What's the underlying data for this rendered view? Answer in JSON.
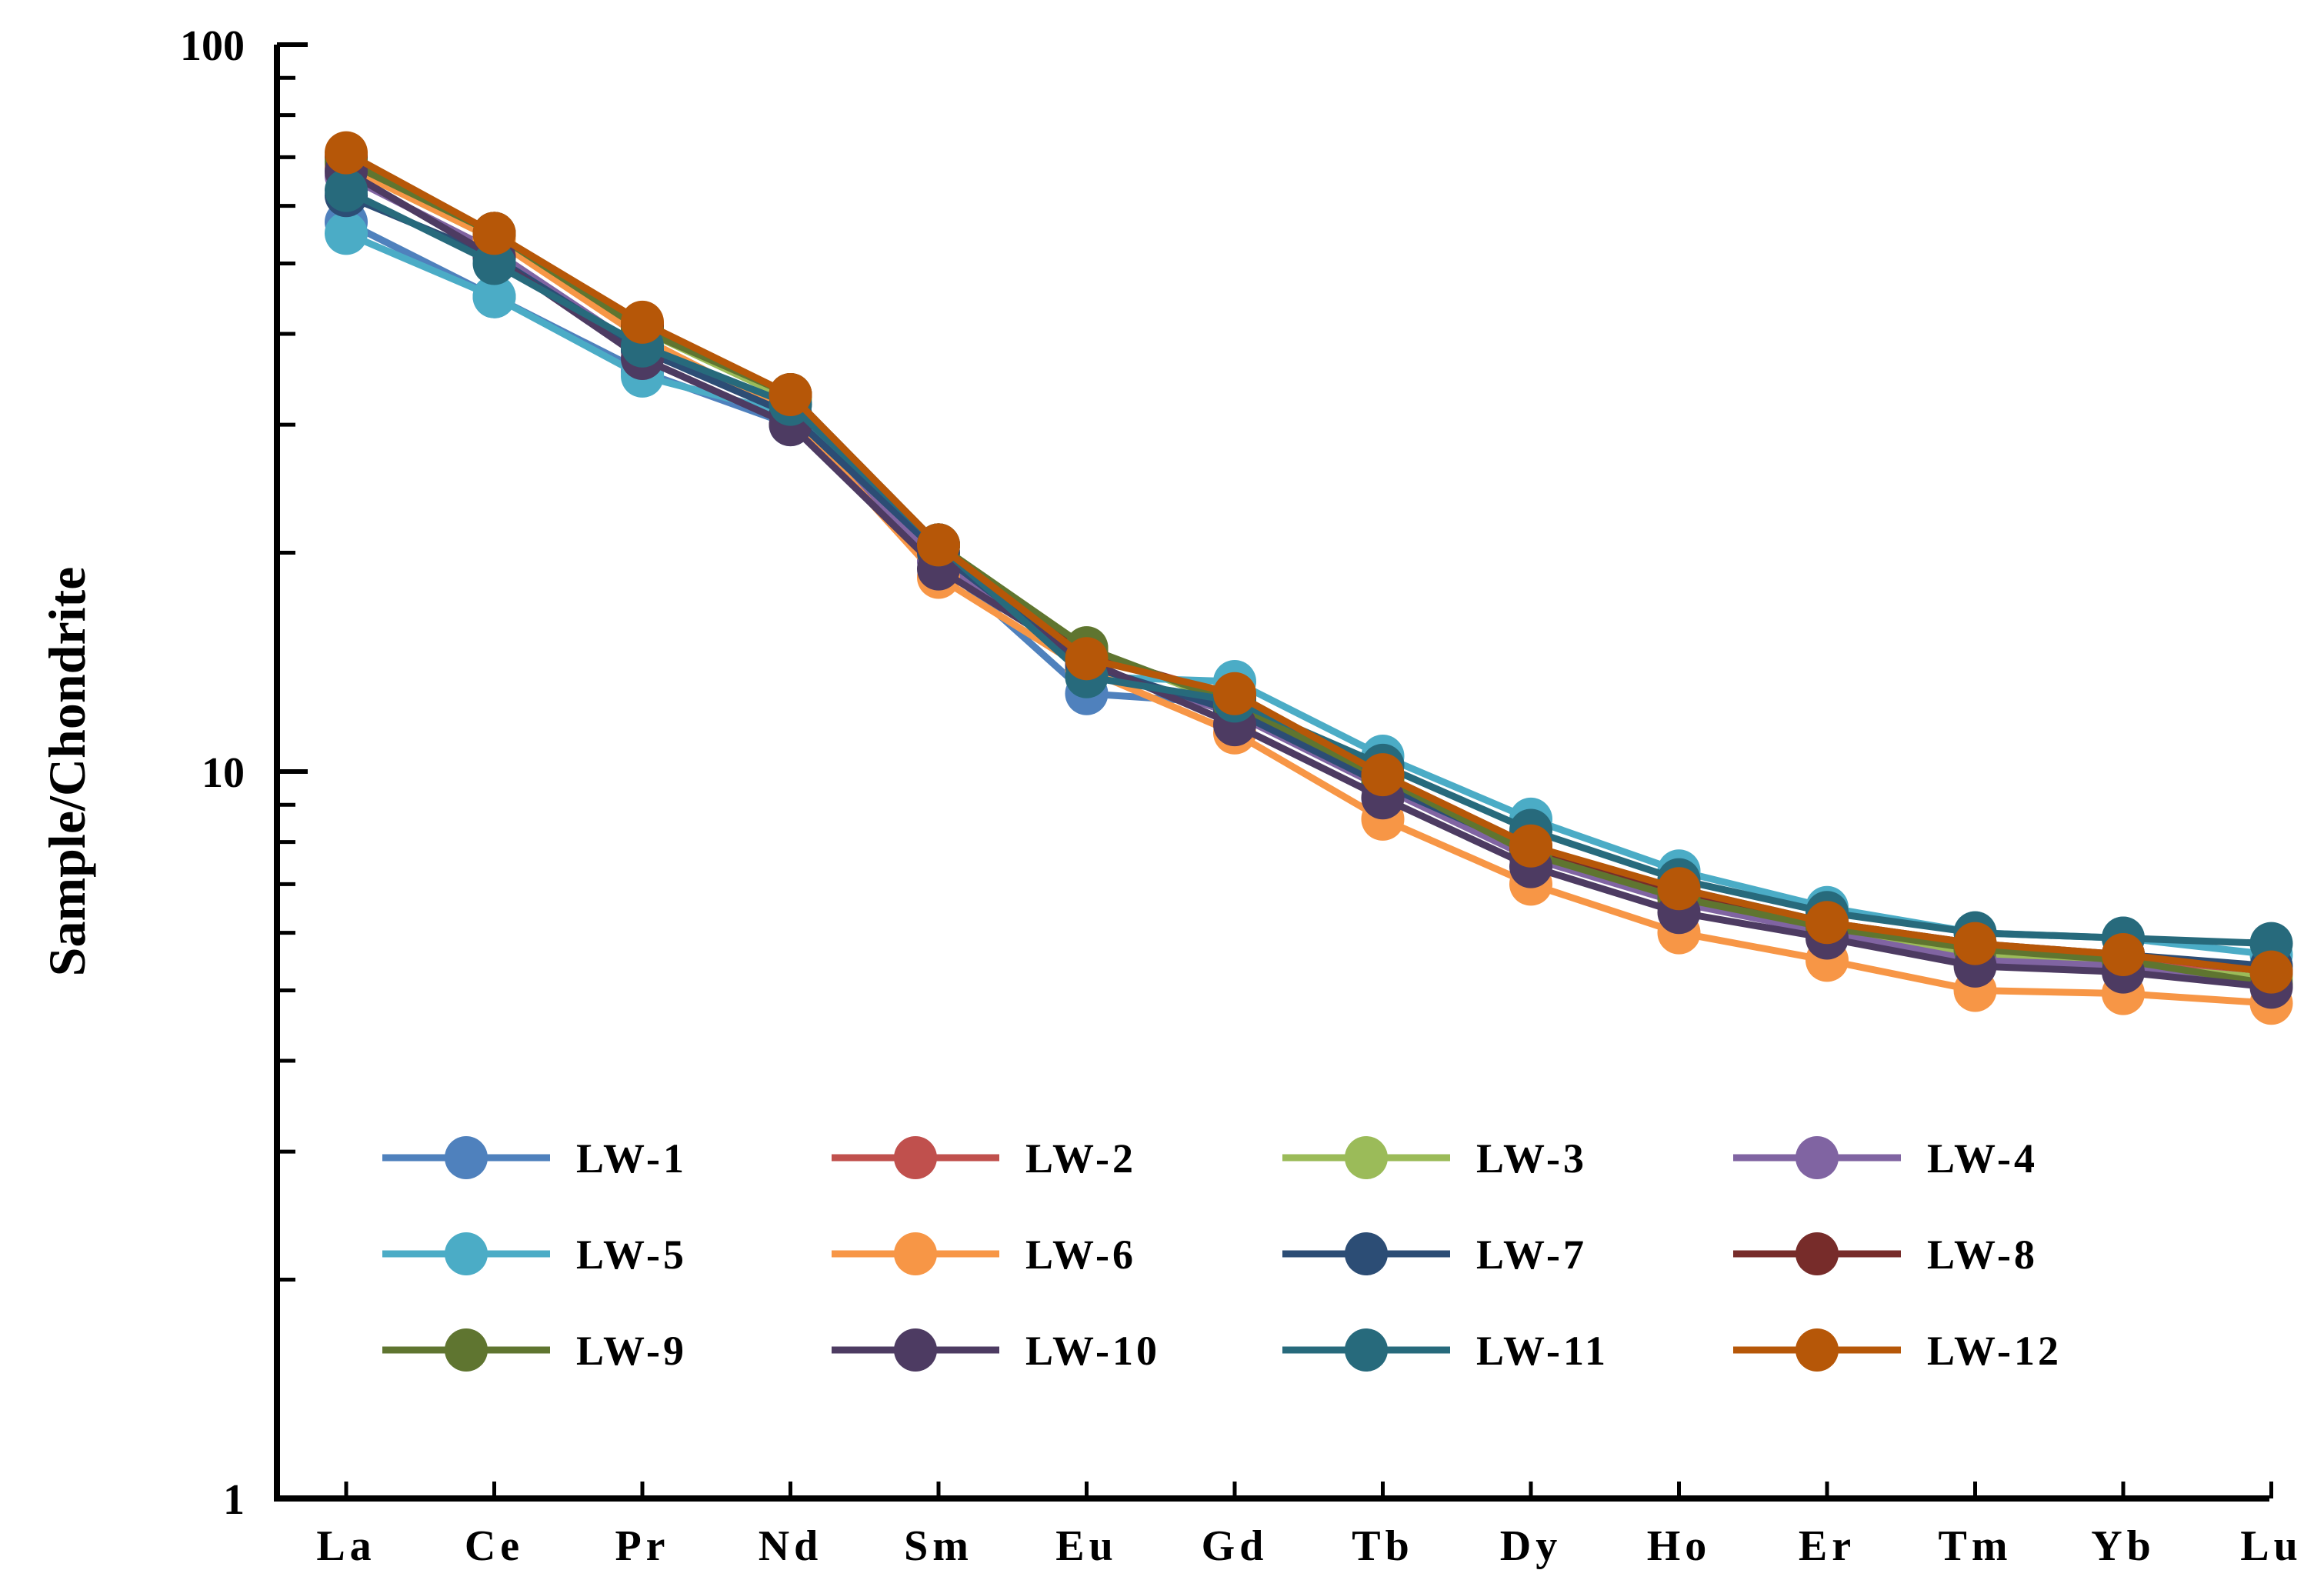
{
  "chart_data": {
    "type": "line",
    "title": "",
    "xlabel": "",
    "ylabel": "Sample/Chondrite",
    "yscale": "log",
    "ylim": [
      1,
      100
    ],
    "yticks": [
      1,
      10,
      100
    ],
    "ytick_labels": [
      "1",
      "10",
      "100"
    ],
    "categories": [
      "La",
      "Ce",
      "Pr",
      "Nd",
      "Sm",
      "Eu",
      "Gd",
      "Tb",
      "Dy",
      "Ho",
      "Er",
      "Tm",
      "Yb",
      "Lu"
    ],
    "legend_position": "lower-center",
    "series": [
      {
        "name": "LW-1",
        "color": "#4F81BD",
        "values": [
          57,
          45,
          35.5,
          30,
          19.5,
          12.8,
          12.4,
          9.8,
          7.8,
          6.9,
          6.2,
          5.7,
          5.6,
          5.2
        ]
      },
      {
        "name": "LW-2",
        "color": "#C0504D",
        "values": [
          70,
          55,
          41,
          33,
          20.5,
          14.5,
          12.7,
          9.9,
          7.9,
          6.8,
          6.2,
          5.7,
          5.5,
          5.3
        ]
      },
      {
        "name": "LW-3",
        "color": "#9BBB59",
        "values": [
          68,
          54,
          40.5,
          32.5,
          20.5,
          14.8,
          12.3,
          9.7,
          7.8,
          6.7,
          6.1,
          5.6,
          5.4,
          5.2
        ]
      },
      {
        "name": "LW-4",
        "color": "#8064A2",
        "values": [
          66,
          52,
          38,
          31,
          19.5,
          14,
          12,
          9.5,
          7.6,
          6.6,
          6.0,
          5.5,
          5.4,
          5.1
        ]
      },
      {
        "name": "LW-5",
        "color": "#4BACC6",
        "values": [
          55,
          45,
          35,
          31,
          20.5,
          13.5,
          13.3,
          10.5,
          8.6,
          7.3,
          6.5,
          6.0,
          5.9,
          5.6
        ]
      },
      {
        "name": "LW-6",
        "color": "#F79646",
        "values": [
          68,
          54,
          39.5,
          31,
          18.5,
          13.8,
          11.3,
          8.6,
          7.0,
          6.0,
          5.5,
          5.0,
          4.95,
          4.8
        ]
      },
      {
        "name": "LW-7",
        "color": "#2C4D75",
        "values": [
          62,
          51,
          38,
          31,
          20,
          14,
          12.1,
          9.6,
          7.8,
          6.8,
          6.2,
          5.7,
          5.6,
          5.4
        ]
      },
      {
        "name": "LW-8",
        "color": "#772C2A",
        "values": [
          70,
          55,
          41,
          33,
          20.5,
          14.6,
          12.6,
          9.9,
          7.8,
          6.8,
          6.2,
          5.8,
          5.6,
          5.3
        ]
      },
      {
        "name": "LW-9",
        "color": "#5F7530",
        "values": [
          69,
          55,
          40.5,
          33,
          20.5,
          14.8,
          12.4,
          9.8,
          7.7,
          6.7,
          6.1,
          5.7,
          5.5,
          5.1
        ]
      },
      {
        "name": "LW-10",
        "color": "#4D3B62",
        "values": [
          67,
          51,
          37,
          30,
          19,
          14.2,
          11.6,
          9.2,
          7.4,
          6.4,
          5.9,
          5.4,
          5.3,
          5.05
        ]
      },
      {
        "name": "LW-11",
        "color": "#276A7C",
        "values": [
          63,
          50,
          38.5,
          32,
          20.5,
          13.5,
          12.5,
          10.2,
          8.3,
          7.1,
          6.4,
          6.0,
          5.9,
          5.8
        ]
      },
      {
        "name": "LW-12",
        "color": "#B65708",
        "values": [
          71,
          55,
          41.5,
          33,
          20.5,
          14.3,
          12.8,
          9.9,
          7.9,
          6.9,
          6.2,
          5.8,
          5.6,
          5.3
        ]
      }
    ]
  }
}
